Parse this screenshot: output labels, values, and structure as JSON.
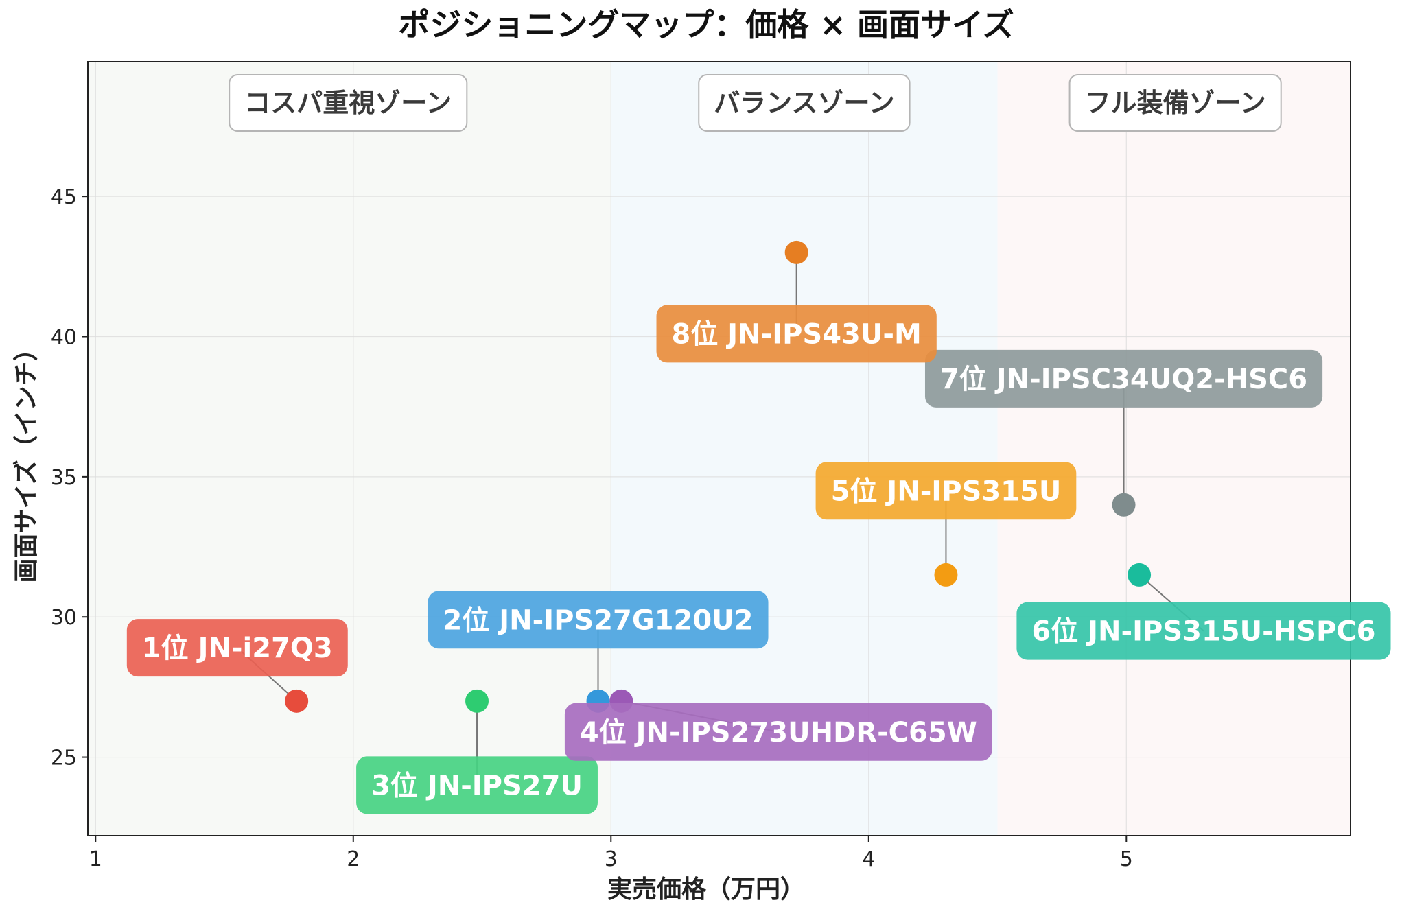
{
  "chart_data": {
    "type": "scatter",
    "title": "ポジショニングマップ：価格 × 画面サイズ",
    "xlabel": "実売価格（万円）",
    "ylabel": "画面サイズ（インチ）",
    "xlim": [
      0.97,
      5.87
    ],
    "ylim": [
      22.2,
      49.8
    ],
    "xticks": [
      1,
      2,
      3,
      4,
      5
    ],
    "yticks": [
      25,
      30,
      35,
      40,
      45
    ],
    "grid": true,
    "zones": [
      {
        "label": "コスパ重視ゾーン",
        "x_from": 0.97,
        "x_to": 3.0,
        "color": "#f7f9f6",
        "label_x": 1.98
      },
      {
        "label": "バランスゾーン",
        "x_from": 3.0,
        "x_to": 4.5,
        "color": "#f3f9fc",
        "label_x": 3.75
      },
      {
        "label": "フル装備ゾーン",
        "x_from": 4.5,
        "x_to": 5.87,
        "color": "#fdf7f7",
        "label_x": 5.19
      }
    ],
    "points": [
      {
        "label": "1位 JN-i27Q3",
        "x": 1.78,
        "y": 27,
        "color": "#e74c3c",
        "label_x": 1.55,
        "label_y": 28.9
      },
      {
        "label": "2位 JN-IPS27G120U2",
        "x": 2.95,
        "y": 27,
        "color": "#3498db",
        "label_x": 2.95,
        "label_y": 29.9
      },
      {
        "label": "3位 JN-IPS27U",
        "x": 2.48,
        "y": 27,
        "color": "#2ecc71",
        "label_x": 2.48,
        "label_y": 24.0
      },
      {
        "label": "4位 JN-IPS273UHDR-C65W",
        "x": 3.04,
        "y": 27,
        "color": "#9b59b6",
        "label_x": 3.65,
        "label_y": 25.9
      },
      {
        "label": "5位 JN-IPS315U",
        "x": 4.3,
        "y": 31.5,
        "color": "#f39c12",
        "label_x": 4.3,
        "label_y": 34.5
      },
      {
        "label": "6位 JN-IPS315U-HSPC6",
        "x": 5.05,
        "y": 31.5,
        "color": "#1abc9c",
        "label_x": 5.3,
        "label_y": 29.5
      },
      {
        "label": "7位 JN-IPSC34UQ2-HSC6",
        "x": 4.99,
        "y": 34,
        "color": "#7f8c8d",
        "label_x": 4.99,
        "label_y": 38.5
      },
      {
        "label": "8位 JN-IPS43U-M",
        "x": 3.72,
        "y": 43,
        "color": "#e67e22",
        "label_x": 3.72,
        "label_y": 40.1
      }
    ]
  }
}
